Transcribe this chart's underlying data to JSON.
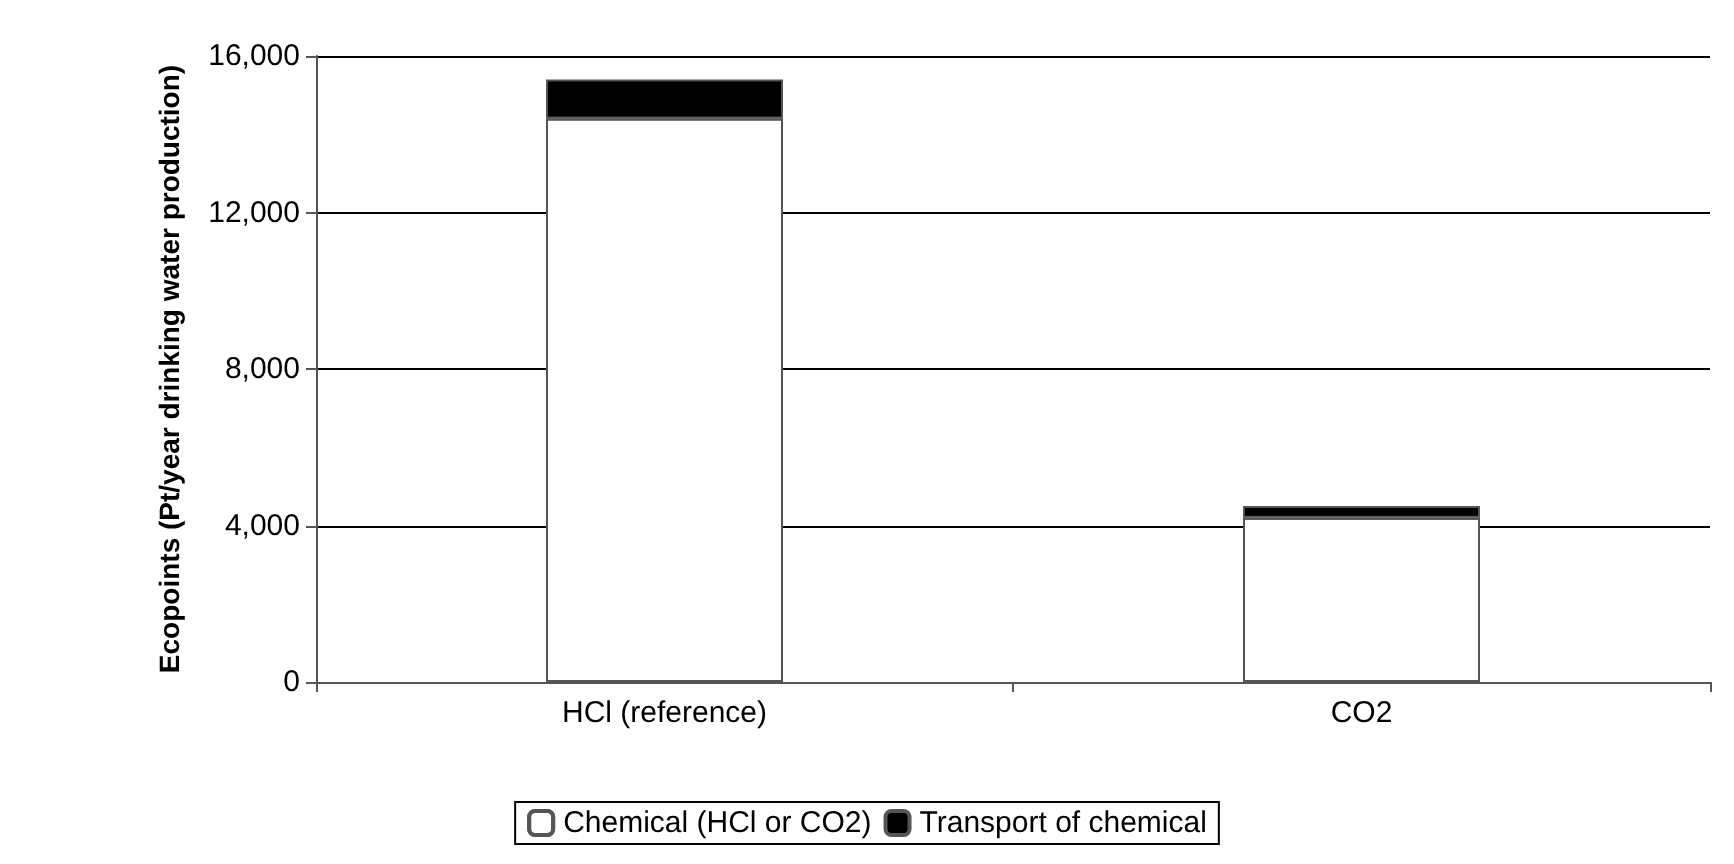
{
  "chart_data": {
    "type": "bar",
    "stacked": true,
    "ylabel": "Ecopoints (Pt/year drinking water production)",
    "categories": [
      "HCl (reference)",
      "CO2"
    ],
    "series": [
      {
        "name": "Chemical (HCl or CO2)",
        "color": "#ffffff",
        "values": [
          14400,
          4200
        ]
      },
      {
        "name": "Transport of chemical",
        "color": "#000000",
        "values": [
          1000,
          300
        ]
      }
    ],
    "ylim": [
      0,
      16000
    ],
    "yticks": [
      {
        "value": 0,
        "label": "0"
      },
      {
        "value": 4000,
        "label": "4,000"
      },
      {
        "value": 8000,
        "label": "8,000"
      },
      {
        "value": 12000,
        "label": "12,000"
      },
      {
        "value": 16000,
        "label": "16,000"
      }
    ],
    "grid": "y",
    "legend": "bottom"
  }
}
